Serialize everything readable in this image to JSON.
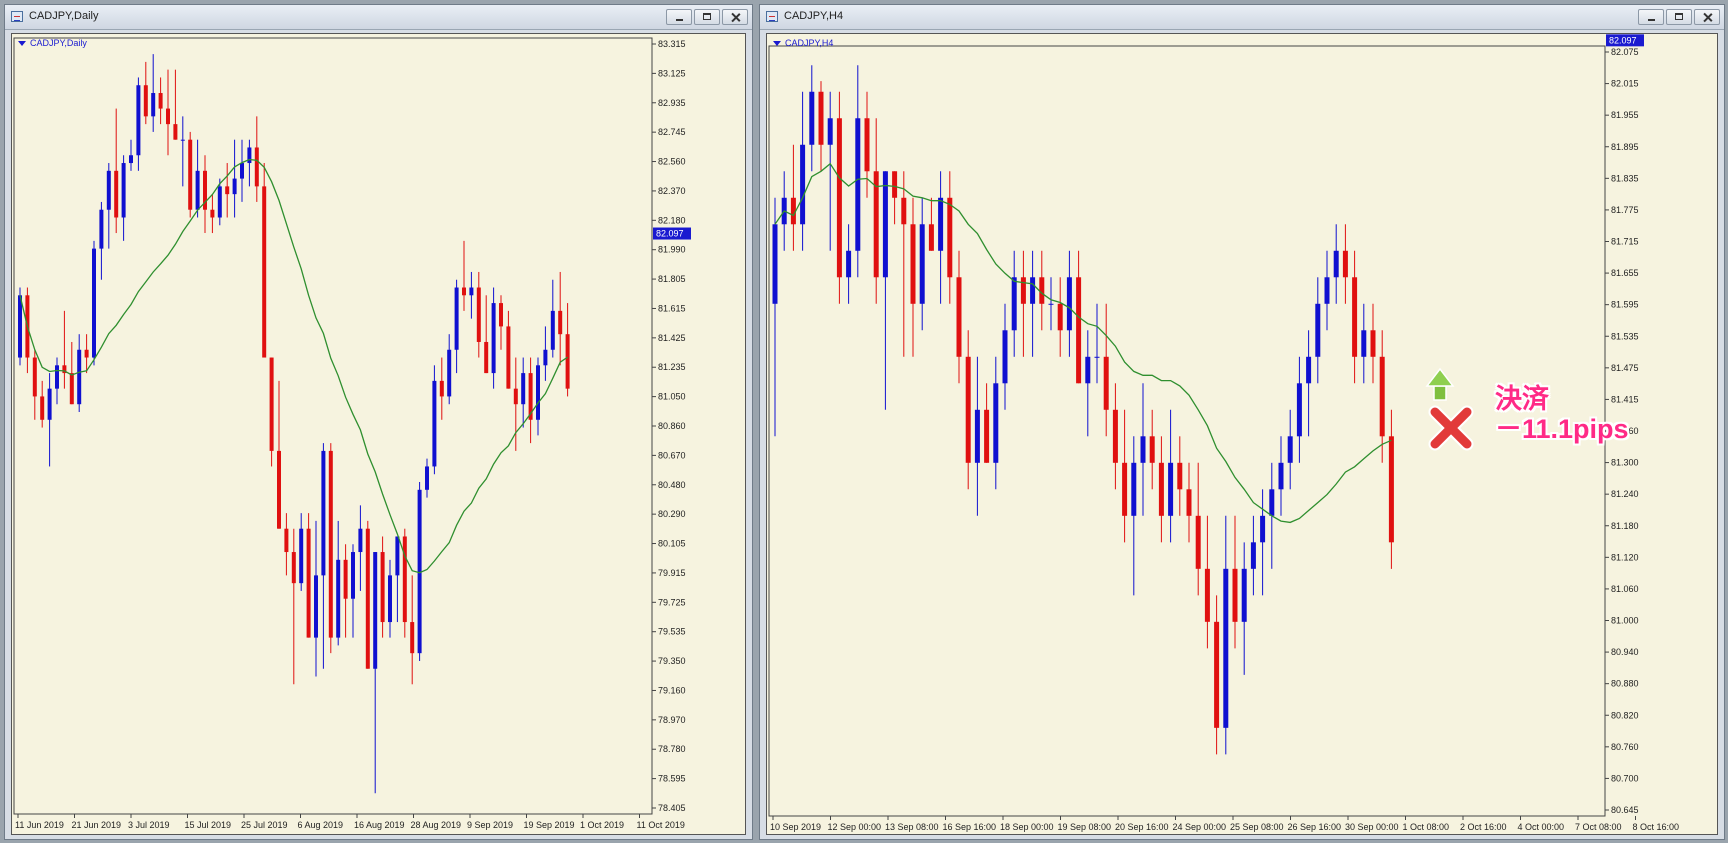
{
  "left_window": {
    "title": "CADJPY,Daily",
    "chart_label": "CADJPY,Daily",
    "current_price": "82.097",
    "price_ticks": [
      "83.315",
      "83.125",
      "82.935",
      "82.745",
      "82.560",
      "82.370",
      "82.180",
      "81.990",
      "81.805",
      "81.615",
      "81.425",
      "81.235",
      "81.050",
      "80.860",
      "80.670",
      "80.480",
      "80.290",
      "80.105",
      "79.915",
      "79.725",
      "79.535",
      "79.350",
      "79.160",
      "78.970",
      "78.780",
      "78.595",
      "78.405"
    ],
    "date_ticks": [
      "11 Jun 2019",
      "21 Jun 2019",
      "3 Jul 2019",
      "15 Jul 2019",
      "25 Jul 2019",
      "6 Aug 2019",
      "16 Aug 2019",
      "28 Aug 2019",
      "9 Sep 2019",
      "19 Sep 2019",
      "1 Oct 2019",
      "11 Oct 2019"
    ]
  },
  "right_window": {
    "title": "CADJPY,H4",
    "chart_label": "CADJPY,H4",
    "current_price": "82.097",
    "price_ticks": [
      "82.075",
      "82.015",
      "81.955",
      "81.895",
      "81.835",
      "81.775",
      "81.715",
      "81.655",
      "81.595",
      "81.535",
      "81.475",
      "81.415",
      "81.360",
      "81.300",
      "81.240",
      "81.180",
      "81.120",
      "81.060",
      "81.000",
      "80.940",
      "80.880",
      "80.820",
      "80.760",
      "80.700",
      "80.645"
    ],
    "date_ticks": [
      "10 Sep 2019",
      "12 Sep 00:00",
      "13 Sep 08:00",
      "16 Sep 16:00",
      "18 Sep 00:00",
      "19 Sep 08:00",
      "20 Sep 16:00",
      "24 Sep 00:00",
      "25 Sep 08:00",
      "26 Sep 16:00",
      "30 Sep 00:00",
      "1 Oct 08:00",
      "2 Oct 16:00",
      "4 Oct 00:00",
      "7 Oct 08:00",
      "8 Oct 16:00"
    ],
    "annotation": {
      "line1": "決済",
      "line2": "－11.1pips"
    }
  },
  "colors": {
    "background": "#f6f3df",
    "bull": "#1010d0",
    "bear": "#e01010",
    "moving_average": "#2f8f2f"
  },
  "chart_data": [
    {
      "type": "candlestick",
      "title": "CADJPY,Daily",
      "ylim": [
        78.405,
        83.315
      ],
      "x": [
        "11 Jun 2019",
        "21 Jun 2019",
        "3 Jul 2019",
        "15 Jul 2019",
        "25 Jul 2019",
        "6 Aug 2019",
        "16 Aug 2019",
        "28 Aug 2019",
        "9 Sep 2019",
        "19 Sep 2019",
        "1 Oct 2019",
        "11 Oct 2019"
      ],
      "ohlc": [
        [
          81.3,
          81.75,
          81.25,
          81.7
        ],
        [
          81.7,
          81.75,
          81.2,
          81.3
        ],
        [
          81.3,
          81.35,
          80.9,
          81.05
        ],
        [
          81.05,
          81.15,
          80.85,
          80.9
        ],
        [
          80.9,
          81.2,
          80.6,
          81.1
        ],
        [
          81.1,
          81.3,
          81.0,
          81.25
        ],
        [
          81.25,
          81.6,
          81.1,
          81.2
        ],
        [
          81.2,
          81.4,
          81.0,
          81.0
        ],
        [
          81.0,
          81.45,
          80.95,
          81.35
        ],
        [
          81.35,
          81.45,
          81.2,
          81.3
        ],
        [
          81.3,
          82.05,
          81.25,
          82.0
        ],
        [
          82.0,
          82.3,
          81.8,
          82.25
        ],
        [
          82.25,
          82.55,
          82.0,
          82.5
        ],
        [
          82.5,
          82.9,
          82.1,
          82.2
        ],
        [
          82.2,
          82.6,
          82.05,
          82.55
        ],
        [
          82.55,
          82.7,
          82.5,
          82.6
        ],
        [
          82.6,
          83.1,
          82.5,
          83.05
        ],
        [
          83.05,
          83.2,
          82.8,
          82.85
        ],
        [
          82.85,
          83.25,
          82.75,
          83.0
        ],
        [
          83.0,
          83.1,
          82.8,
          82.9
        ],
        [
          82.9,
          83.15,
          82.6,
          82.8
        ],
        [
          82.8,
          83.15,
          82.7,
          82.7
        ],
        [
          82.7,
          82.85,
          82.4,
          82.7
        ],
        [
          82.7,
          82.75,
          82.2,
          82.25
        ],
        [
          82.25,
          82.7,
          82.2,
          82.5
        ],
        [
          82.5,
          82.6,
          82.1,
          82.25
        ],
        [
          82.25,
          82.35,
          82.1,
          82.2
        ],
        [
          82.2,
          82.45,
          82.15,
          82.4
        ],
        [
          82.4,
          82.55,
          82.2,
          82.35
        ],
        [
          82.35,
          82.7,
          82.2,
          82.45
        ],
        [
          82.45,
          82.7,
          82.3,
          82.55
        ],
        [
          82.55,
          82.7,
          82.4,
          82.65
        ],
        [
          82.65,
          82.85,
          82.3,
          82.4
        ],
        [
          82.4,
          82.55,
          81.3,
          81.3
        ],
        [
          81.3,
          81.3,
          80.6,
          80.7
        ],
        [
          80.7,
          81.15,
          80.2,
          80.2
        ],
        [
          80.2,
          80.3,
          79.9,
          80.05
        ],
        [
          80.05,
          80.2,
          79.2,
          79.85
        ],
        [
          79.85,
          80.3,
          79.8,
          80.2
        ],
        [
          80.2,
          80.3,
          79.5,
          79.5
        ],
        [
          79.5,
          80.25,
          79.25,
          79.9
        ],
        [
          79.9,
          80.75,
          79.3,
          80.7
        ],
        [
          80.7,
          80.75,
          79.4,
          79.5
        ],
        [
          79.5,
          80.25,
          79.45,
          80.0
        ],
        [
          80.0,
          80.1,
          79.5,
          79.75
        ],
        [
          79.75,
          80.1,
          79.5,
          80.05
        ],
        [
          80.05,
          80.35,
          79.8,
          80.2
        ],
        [
          80.2,
          80.25,
          79.3,
          79.3
        ],
        [
          79.3,
          80.05,
          78.5,
          80.05
        ],
        [
          80.05,
          80.15,
          79.5,
          79.6
        ],
        [
          79.6,
          80.0,
          79.5,
          79.9
        ],
        [
          79.9,
          80.15,
          79.6,
          80.15
        ],
        [
          80.15,
          80.2,
          79.5,
          79.6
        ],
        [
          79.6,
          79.9,
          79.2,
          79.4
        ],
        [
          79.4,
          80.5,
          79.35,
          80.45
        ],
        [
          80.45,
          80.65,
          80.4,
          80.6
        ],
        [
          80.6,
          81.25,
          80.55,
          81.15
        ],
        [
          81.15,
          81.3,
          80.9,
          81.05
        ],
        [
          81.05,
          81.45,
          81.0,
          81.35
        ],
        [
          81.35,
          81.8,
          81.2,
          81.75
        ],
        [
          81.75,
          82.05,
          81.6,
          81.7
        ],
        [
          81.7,
          81.85,
          81.55,
          81.75
        ],
        [
          81.75,
          81.85,
          81.3,
          81.4
        ],
        [
          81.4,
          81.7,
          81.2,
          81.2
        ],
        [
          81.2,
          81.75,
          81.1,
          81.65
        ],
        [
          81.65,
          81.7,
          81.35,
          81.5
        ],
        [
          81.5,
          81.6,
          81.1,
          81.1
        ],
        [
          81.1,
          81.3,
          80.7,
          81.0
        ],
        [
          81.0,
          81.3,
          80.85,
          81.2
        ],
        [
          81.2,
          81.3,
          80.75,
          80.9
        ],
        [
          80.9,
          81.3,
          80.8,
          81.25
        ],
        [
          81.25,
          81.5,
          81.15,
          81.35
        ],
        [
          81.35,
          81.8,
          81.3,
          81.6
        ],
        [
          81.6,
          81.85,
          81.25,
          81.45
        ],
        [
          81.45,
          81.65,
          81.05,
          81.1
        ]
      ]
    },
    {
      "type": "candlestick",
      "title": "CADJPY,H4",
      "ylim": [
        80.645,
        82.075
      ],
      "x": [
        "10 Sep 2019",
        "12 Sep 00:00",
        "13 Sep 08:00",
        "16 Sep 16:00",
        "18 Sep 00:00",
        "19 Sep 08:00",
        "20 Sep 16:00",
        "24 Sep 00:00",
        "25 Sep 08:00",
        "26 Sep 16:00",
        "30 Sep 00:00",
        "1 Oct 08:00",
        "2 Oct 16:00",
        "4 Oct 00:00",
        "7 Oct 08:00",
        "8 Oct 16:00"
      ],
      "ohlc": [
        [
          81.6,
          81.8,
          81.35,
          81.75
        ],
        [
          81.75,
          81.85,
          81.7,
          81.8
        ],
        [
          81.8,
          81.9,
          81.7,
          81.75
        ],
        [
          81.75,
          82.0,
          81.7,
          81.9
        ],
        [
          81.9,
          82.05,
          81.85,
          82.0
        ],
        [
          82.0,
          82.02,
          81.85,
          81.9
        ],
        [
          81.9,
          82.0,
          81.7,
          81.95
        ],
        [
          81.95,
          82.0,
          81.6,
          81.65
        ],
        [
          81.65,
          81.75,
          81.6,
          81.7
        ],
        [
          81.7,
          82.05,
          81.65,
          81.95
        ],
        [
          81.95,
          82.0,
          81.8,
          81.85
        ],
        [
          81.85,
          81.95,
          81.6,
          81.65
        ],
        [
          81.65,
          81.85,
          81.4,
          81.85
        ],
        [
          81.85,
          81.85,
          81.75,
          81.8
        ],
        [
          81.8,
          81.85,
          81.5,
          81.75
        ],
        [
          81.75,
          81.8,
          81.5,
          81.6
        ],
        [
          81.6,
          81.8,
          81.55,
          81.75
        ],
        [
          81.75,
          81.8,
          81.7,
          81.7
        ],
        [
          81.7,
          81.85,
          81.6,
          81.8
        ],
        [
          81.8,
          81.85,
          81.6,
          81.65
        ],
        [
          81.65,
          81.7,
          81.45,
          81.5
        ],
        [
          81.5,
          81.55,
          81.25,
          81.3
        ],
        [
          81.3,
          81.5,
          81.2,
          81.4
        ],
        [
          81.4,
          81.45,
          81.3,
          81.3
        ],
        [
          81.3,
          81.5,
          81.25,
          81.45
        ],
        [
          81.45,
          81.6,
          81.4,
          81.55
        ],
        [
          81.55,
          81.7,
          81.5,
          81.65
        ],
        [
          81.65,
          81.7,
          81.5,
          81.6
        ],
        [
          81.6,
          81.7,
          81.5,
          81.65
        ],
        [
          81.65,
          81.7,
          81.55,
          81.6
        ],
        [
          81.6,
          81.65,
          81.55,
          81.6
        ],
        [
          81.6,
          81.65,
          81.5,
          81.55
        ],
        [
          81.55,
          81.7,
          81.5,
          81.65
        ],
        [
          81.65,
          81.7,
          81.45,
          81.45
        ],
        [
          81.45,
          81.55,
          81.35,
          81.5
        ],
        [
          81.5,
          81.6,
          81.45,
          81.5
        ],
        [
          81.5,
          81.6,
          81.35,
          81.4
        ],
        [
          81.4,
          81.45,
          81.25,
          81.3
        ],
        [
          81.3,
          81.4,
          81.15,
          81.2
        ],
        [
          81.2,
          81.35,
          81.05,
          81.3
        ],
        [
          81.3,
          81.45,
          81.2,
          81.35
        ],
        [
          81.35,
          81.4,
          81.25,
          81.3
        ],
        [
          81.3,
          81.35,
          81.15,
          81.2
        ],
        [
          81.2,
          81.4,
          81.15,
          81.3
        ],
        [
          81.3,
          81.35,
          81.2,
          81.25
        ],
        [
          81.25,
          81.3,
          81.15,
          81.2
        ],
        [
          81.2,
          81.3,
          81.05,
          81.1
        ],
        [
          81.1,
          81.2,
          80.95,
          81.0
        ],
        [
          81.0,
          81.05,
          80.75,
          80.8
        ],
        [
          80.8,
          81.2,
          80.75,
          81.1
        ],
        [
          81.1,
          81.2,
          80.95,
          81.0
        ],
        [
          81.0,
          81.15,
          80.9,
          81.1
        ],
        [
          81.1,
          81.2,
          81.05,
          81.15
        ],
        [
          81.15,
          81.25,
          81.05,
          81.2
        ],
        [
          81.2,
          81.3,
          81.1,
          81.25
        ],
        [
          81.25,
          81.35,
          81.2,
          81.3
        ],
        [
          81.3,
          81.4,
          81.25,
          81.35
        ],
        [
          81.35,
          81.5,
          81.3,
          81.45
        ],
        [
          81.45,
          81.55,
          81.35,
          81.5
        ],
        [
          81.5,
          81.65,
          81.45,
          81.6
        ],
        [
          81.6,
          81.7,
          81.55,
          81.65
        ],
        [
          81.65,
          81.75,
          81.6,
          81.7
        ],
        [
          81.7,
          81.75,
          81.6,
          81.65
        ],
        [
          81.65,
          81.7,
          81.45,
          81.5
        ],
        [
          81.5,
          81.6,
          81.45,
          81.55
        ],
        [
          81.55,
          81.6,
          81.45,
          81.5
        ],
        [
          81.5,
          81.55,
          81.3,
          81.35
        ],
        [
          81.35,
          81.4,
          81.1,
          81.15
        ]
      ]
    }
  ]
}
